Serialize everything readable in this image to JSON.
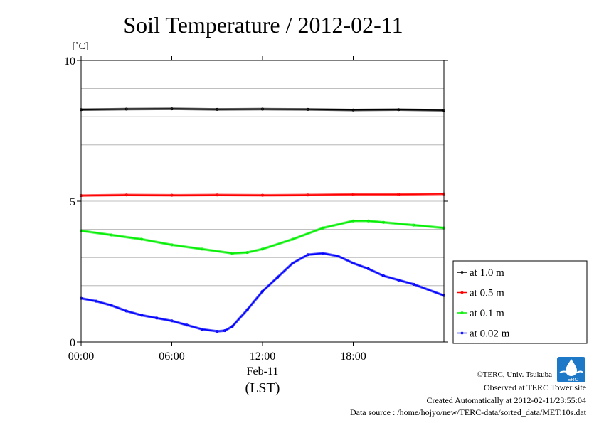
{
  "chart_data": {
    "type": "line",
    "title": "Soil Temperature / 2012-02-11",
    "ylabel": "[˚C]",
    "ylim": [
      0,
      10
    ],
    "yticks": [
      {
        "value": 0,
        "label": "0"
      },
      {
        "value": 5,
        "label": "5"
      },
      {
        "value": 10,
        "label": "10"
      }
    ],
    "ygrid": [
      1,
      2,
      3,
      4,
      5,
      6,
      7,
      8,
      9
    ],
    "xlim": [
      0,
      24
    ],
    "xticks": [
      {
        "value": 0,
        "label": "00:00"
      },
      {
        "value": 6,
        "label": "06:00"
      },
      {
        "value": 12,
        "label": "12:00"
      },
      {
        "value": 18,
        "label": "18:00"
      }
    ],
    "xlabel_date": "Feb-11",
    "xlabel": "(LST)",
    "series": [
      {
        "name": "at 1.0 m",
        "color": "#000000",
        "x": [
          0,
          3,
          6,
          9,
          12,
          15,
          18,
          21,
          24
        ],
        "y": [
          8.25,
          8.27,
          8.28,
          8.26,
          8.27,
          8.26,
          8.24,
          8.25,
          8.23
        ]
      },
      {
        "name": "at 0.5 m",
        "color": "#ff0000",
        "x": [
          0,
          3,
          6,
          9,
          12,
          15,
          18,
          21,
          24
        ],
        "y": [
          5.2,
          5.22,
          5.21,
          5.22,
          5.21,
          5.22,
          5.24,
          5.24,
          5.26
        ]
      },
      {
        "name": "at 0.1 m",
        "color": "#00ee00",
        "x": [
          0,
          2,
          4,
          6,
          8,
          10,
          11,
          12,
          14,
          16,
          18,
          19,
          20,
          22,
          24
        ],
        "y": [
          3.95,
          3.8,
          3.65,
          3.45,
          3.3,
          3.15,
          3.18,
          3.3,
          3.65,
          4.05,
          4.3,
          4.3,
          4.25,
          4.15,
          4.05
        ]
      },
      {
        "name": "at 0.02 m",
        "color": "#0000ff",
        "x": [
          0,
          1,
          2,
          3,
          4,
          5,
          6,
          7,
          8,
          9,
          9.5,
          10,
          11,
          12,
          13,
          14,
          15,
          16,
          17,
          18,
          19,
          20,
          21,
          22,
          23,
          24
        ],
        "y": [
          1.55,
          1.45,
          1.3,
          1.1,
          0.95,
          0.85,
          0.75,
          0.6,
          0.45,
          0.38,
          0.4,
          0.55,
          1.15,
          1.8,
          2.3,
          2.8,
          3.1,
          3.15,
          3.05,
          2.8,
          2.6,
          2.35,
          2.2,
          2.05,
          1.85,
          1.65
        ]
      }
    ]
  },
  "footer": {
    "copyright": "©TERC, Univ. Tsukuba",
    "observed": "Observed at TERC Tower site",
    "created": "Created Automatically at 2012-02-11/23:55:04",
    "source": "Data source : /home/hojyo/new/TERC-data/sorted_data/MET.10s.dat"
  },
  "logo": {
    "text": "TERC"
  }
}
